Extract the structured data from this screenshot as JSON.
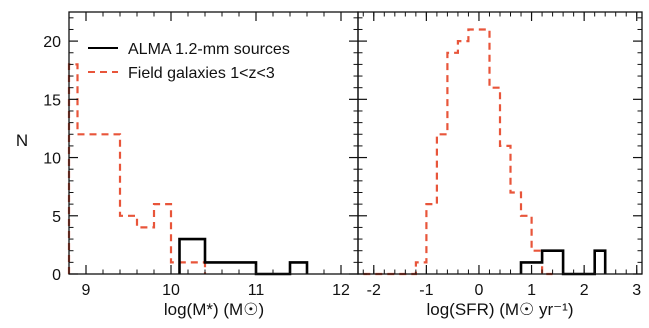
{
  "chart_data": [
    {
      "type": "histogram",
      "panel": "left",
      "xlabel": "log(M*) (M☉)",
      "ylabel": "N",
      "xlim": [
        8.8,
        12.2
      ],
      "ylim": [
        0,
        22.5
      ],
      "xticks": [
        "9",
        "10",
        "11",
        "12"
      ],
      "yticks": [
        "0",
        "5",
        "10",
        "15",
        "20"
      ],
      "legend": {
        "placement": "top-left",
        "entries": [
          {
            "label": "ALMA 1.2-mm sources",
            "color": "#000000",
            "style": "solid"
          },
          {
            "label": "Field galaxies 1<z<3",
            "color": "#e8553a",
            "style": "dashed"
          }
        ]
      },
      "series": [
        {
          "name": "Field galaxies 1<z<3",
          "color": "#e8553a",
          "dashed": true,
          "bins": [
            {
              "x0": 8.8,
              "x1": 8.9,
              "y": 18
            },
            {
              "x0": 8.9,
              "x1": 9.4,
              "y": 12
            },
            {
              "x0": 9.4,
              "x1": 9.6,
              "y": 5
            },
            {
              "x0": 9.6,
              "x1": 9.8,
              "y": 4
            },
            {
              "x0": 9.8,
              "x1": 10.0,
              "y": 6
            },
            {
              "x0": 10.0,
              "x1": 10.2,
              "y": 1
            },
            {
              "x0": 10.2,
              "x1": 10.4,
              "y": 1
            }
          ]
        },
        {
          "name": "ALMA 1.2-mm sources",
          "color": "#000000",
          "dashed": false,
          "bins": [
            {
              "x0": 10.1,
              "x1": 10.4,
              "y": 3
            },
            {
              "x0": 10.4,
              "x1": 11.0,
              "y": 1
            },
            {
              "x0": 11.0,
              "x1": 11.4,
              "y": 0
            },
            {
              "x0": 11.4,
              "x1": 11.6,
              "y": 1
            }
          ]
        }
      ]
    },
    {
      "type": "histogram",
      "panel": "right",
      "xlabel": "log(SFR) (M☉ yr⁻¹)",
      "xlim": [
        -2.3,
        3.1
      ],
      "ylim": [
        0,
        22.5
      ],
      "xticks": [
        "-2",
        "-1",
        "0",
        "1",
        "2",
        "3"
      ],
      "series": [
        {
          "name": "Field galaxies 1<z<3",
          "color": "#e8553a",
          "dashed": true,
          "bins": [
            {
              "x0": -2.2,
              "x1": -1.2,
              "y": 0
            },
            {
              "x0": -1.2,
              "x1": -1.0,
              "y": 1
            },
            {
              "x0": -1.0,
              "x1": -0.8,
              "y": 6
            },
            {
              "x0": -0.8,
              "x1": -0.6,
              "y": 12
            },
            {
              "x0": -0.6,
              "x1": -0.4,
              "y": 19
            },
            {
              "x0": -0.4,
              "x1": -0.2,
              "y": 20
            },
            {
              "x0": -0.2,
              "x1": 0.2,
              "y": 21
            },
            {
              "x0": 0.2,
              "x1": 0.4,
              "y": 16
            },
            {
              "x0": 0.4,
              "x1": 0.6,
              "y": 11
            },
            {
              "x0": 0.6,
              "x1": 0.8,
              "y": 7
            },
            {
              "x0": 0.8,
              "x1": 1.0,
              "y": 5
            },
            {
              "x0": 1.0,
              "x1": 1.2,
              "y": 2
            },
            {
              "x0": 1.2,
              "x1": 1.4,
              "y": 0
            }
          ]
        },
        {
          "name": "ALMA 1.2-mm sources",
          "color": "#000000",
          "dashed": false,
          "bins": [
            {
              "x0": 0.8,
              "x1": 1.0,
              "y": 1
            },
            {
              "x0": 1.0,
              "x1": 1.2,
              "y": 1
            },
            {
              "x0": 1.2,
              "x1": 1.6,
              "y": 2
            },
            {
              "x0": 1.6,
              "x1": 2.2,
              "y": 0
            },
            {
              "x0": 2.2,
              "x1": 2.4,
              "y": 2
            }
          ]
        }
      ]
    }
  ]
}
